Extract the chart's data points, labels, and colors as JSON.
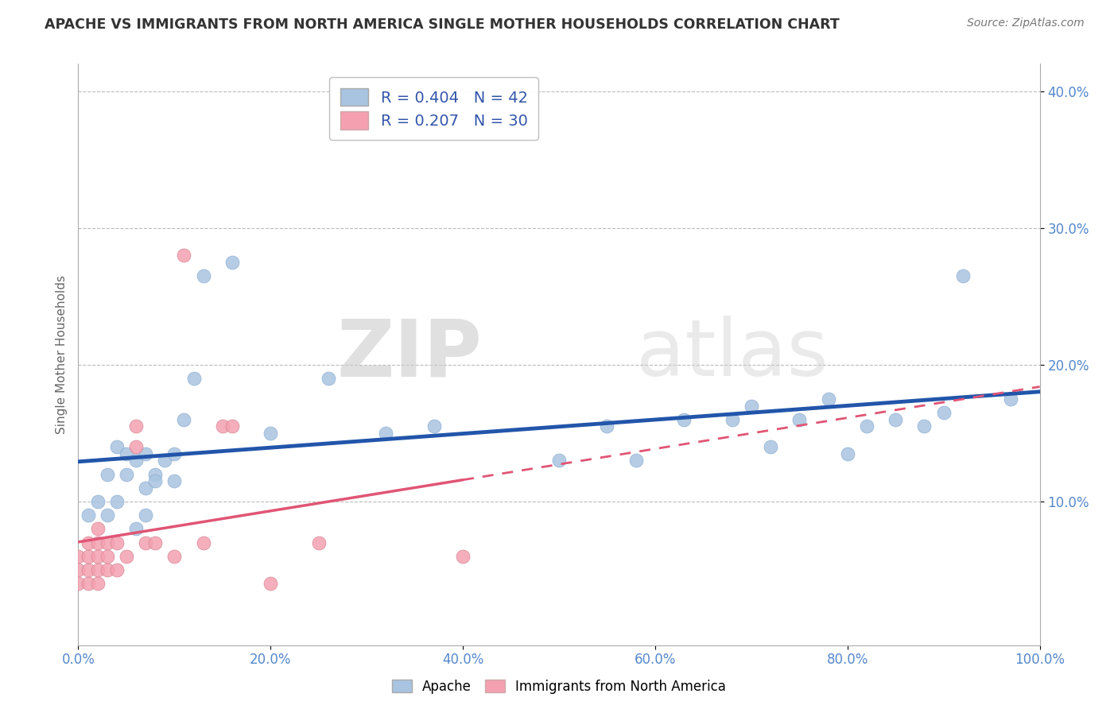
{
  "title": "APACHE VS IMMIGRANTS FROM NORTH AMERICA SINGLE MOTHER HOUSEHOLDS CORRELATION CHART",
  "source": "Source: ZipAtlas.com",
  "ylabel": "Single Mother Households",
  "watermark_zip": "ZIP",
  "watermark_atlas": "atlas",
  "legend_label1": "Apache",
  "legend_label2": "Immigrants from North America",
  "r1": 0.404,
  "n1": 42,
  "r2": 0.207,
  "n2": 30,
  "color1": "#A8C4E0",
  "color2": "#F4A0B0",
  "line_color1": "#2255AA",
  "line_color2": "#E05575",
  "xlim": [
    0.0,
    1.0
  ],
  "ylim": [
    -0.005,
    0.42
  ],
  "xticks": [
    0.0,
    0.2,
    0.4,
    0.6,
    0.8,
    1.0
  ],
  "yticks": [
    0.1,
    0.2,
    0.3,
    0.4
  ],
  "xticklabels": [
    "0.0%",
    "20.0%",
    "40.0%",
    "60.0%",
    "80.0%",
    "100.0%"
  ],
  "yticklabels": [
    "10.0%",
    "20.0%",
    "30.0%",
    "40.0%"
  ],
  "apache_x": [
    0.01,
    0.02,
    0.03,
    0.03,
    0.04,
    0.04,
    0.05,
    0.05,
    0.06,
    0.06,
    0.07,
    0.07,
    0.07,
    0.08,
    0.08,
    0.09,
    0.1,
    0.1,
    0.11,
    0.12,
    0.13,
    0.16,
    0.2,
    0.26,
    0.32,
    0.37,
    0.5,
    0.55,
    0.58,
    0.63,
    0.68,
    0.7,
    0.72,
    0.75,
    0.78,
    0.8,
    0.82,
    0.85,
    0.88,
    0.9,
    0.92,
    0.97
  ],
  "apache_y": [
    0.09,
    0.1,
    0.09,
    0.12,
    0.1,
    0.14,
    0.12,
    0.135,
    0.08,
    0.13,
    0.09,
    0.11,
    0.135,
    0.12,
    0.115,
    0.13,
    0.115,
    0.135,
    0.16,
    0.19,
    0.265,
    0.275,
    0.15,
    0.19,
    0.15,
    0.155,
    0.13,
    0.155,
    0.13,
    0.16,
    0.16,
    0.17,
    0.14,
    0.16,
    0.175,
    0.135,
    0.155,
    0.16,
    0.155,
    0.165,
    0.265,
    0.175
  ],
  "immigrant_x": [
    0.0,
    0.0,
    0.0,
    0.01,
    0.01,
    0.01,
    0.01,
    0.02,
    0.02,
    0.02,
    0.02,
    0.02,
    0.03,
    0.03,
    0.03,
    0.04,
    0.04,
    0.05,
    0.06,
    0.06,
    0.07,
    0.08,
    0.1,
    0.11,
    0.13,
    0.15,
    0.16,
    0.2,
    0.25,
    0.4
  ],
  "immigrant_y": [
    0.04,
    0.05,
    0.06,
    0.04,
    0.05,
    0.06,
    0.07,
    0.04,
    0.05,
    0.06,
    0.07,
    0.08,
    0.05,
    0.06,
    0.07,
    0.05,
    0.07,
    0.06,
    0.14,
    0.155,
    0.07,
    0.07,
    0.06,
    0.28,
    0.07,
    0.155,
    0.155,
    0.04,
    0.07,
    0.06
  ],
  "bg_color": "#FFFFFF",
  "grid_color": "#BBBBBB",
  "tick_color": "#5588CC",
  "title_color": "#333333",
  "source_color": "#777777"
}
